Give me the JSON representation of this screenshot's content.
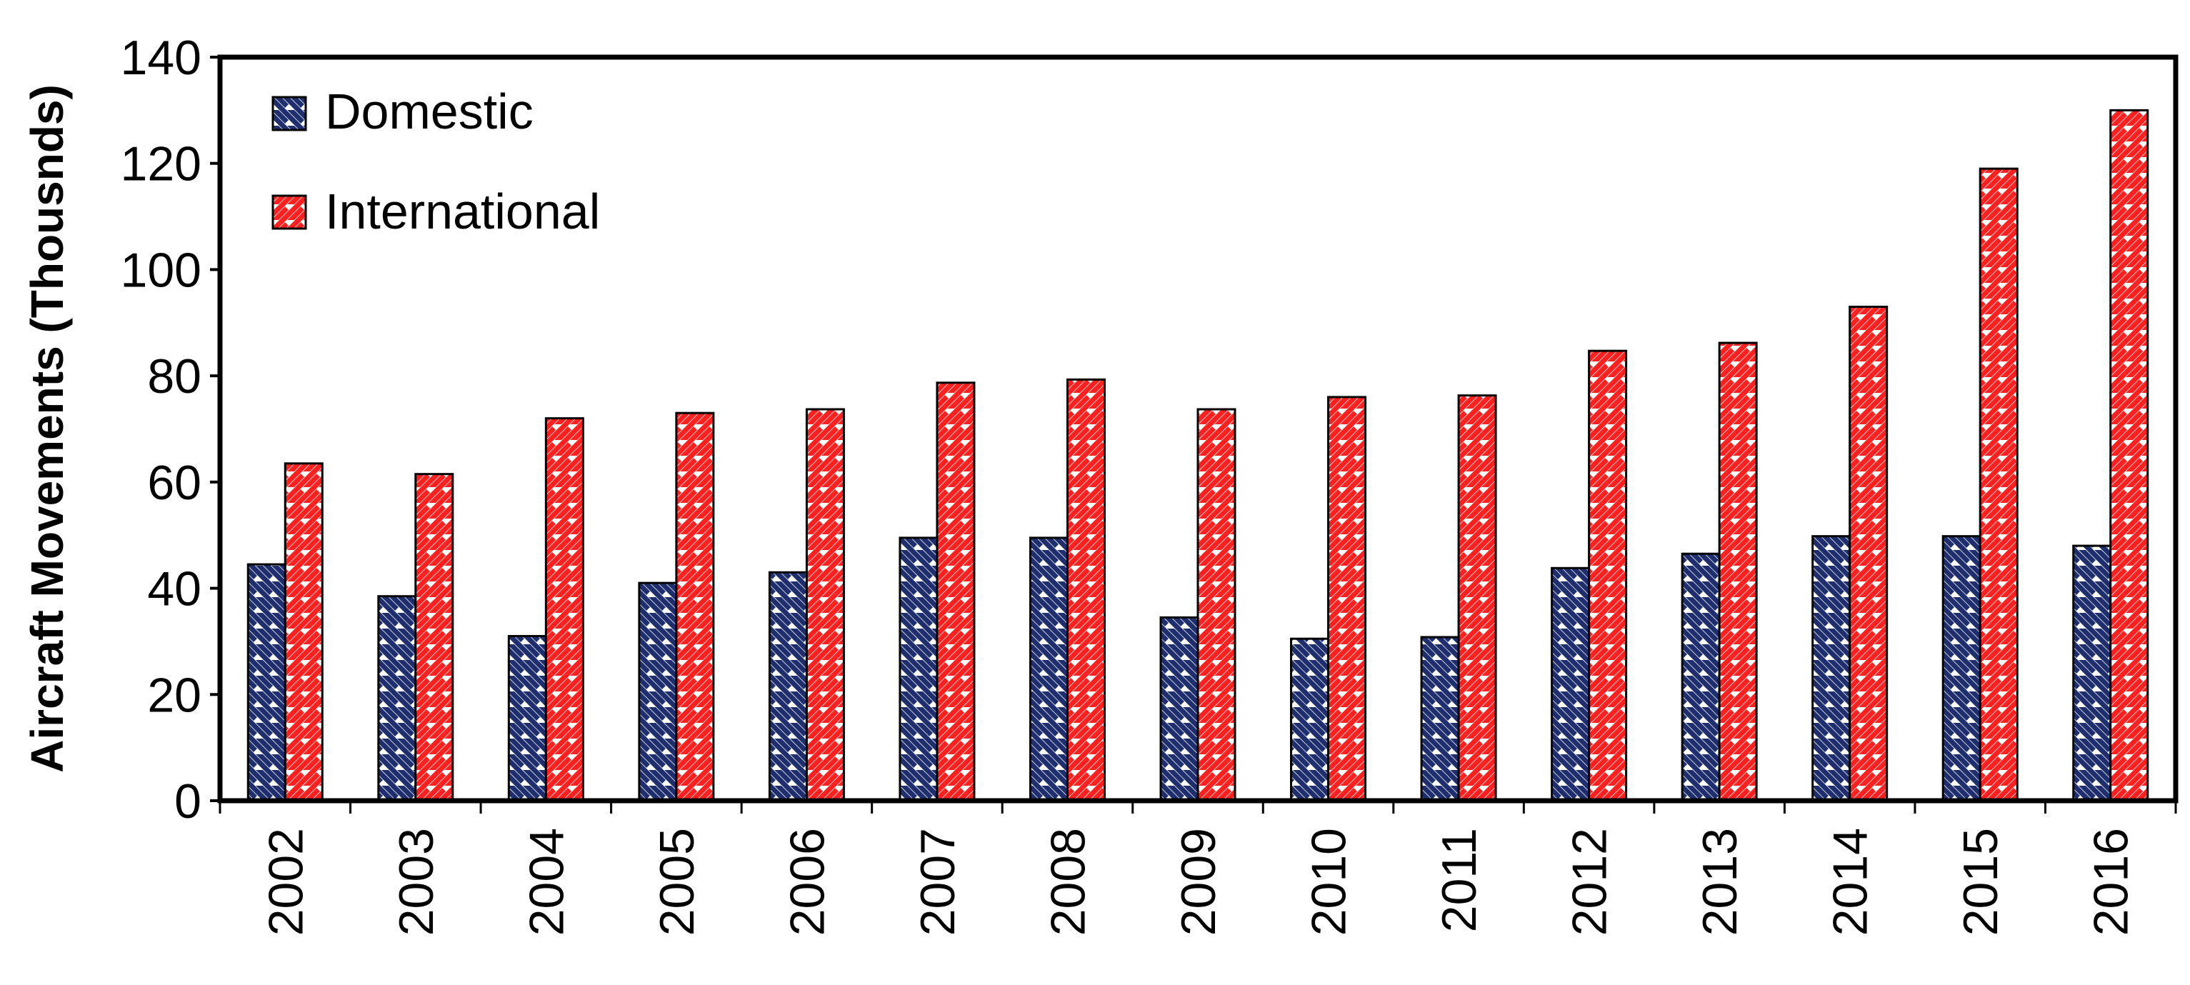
{
  "chart_data": {
    "type": "bar",
    "title": "",
    "xlabel": "",
    "ylabel": "Aircraft Movements (Thousnds)",
    "ylim": [
      0,
      140
    ],
    "yticks": [
      0,
      20,
      40,
      60,
      80,
      100,
      120,
      140
    ],
    "grid": false,
    "legend_position": "top-left",
    "categories": [
      "2002",
      "2003",
      "2004",
      "2005",
      "2006",
      "2007",
      "2008",
      "2009",
      "2010",
      "2011",
      "2012",
      "2013",
      "2014",
      "2015",
      "2016"
    ],
    "series": [
      {
        "name": "Domestic",
        "color": "#1f2f6e",
        "pattern": "diagonal-down",
        "values": [
          44.5,
          38.5,
          31,
          41,
          43,
          49.5,
          49.5,
          34.5,
          30.5,
          30.8,
          43.8,
          46.5,
          49.8,
          49.8,
          48
        ]
      },
      {
        "name": "International",
        "color": "#ff2020",
        "pattern": "diagonal-up",
        "values": [
          63.5,
          61.5,
          72,
          73,
          73.7,
          78.7,
          79.3,
          73.7,
          76,
          76.3,
          84.7,
          86.2,
          93,
          119,
          130
        ]
      }
    ]
  }
}
